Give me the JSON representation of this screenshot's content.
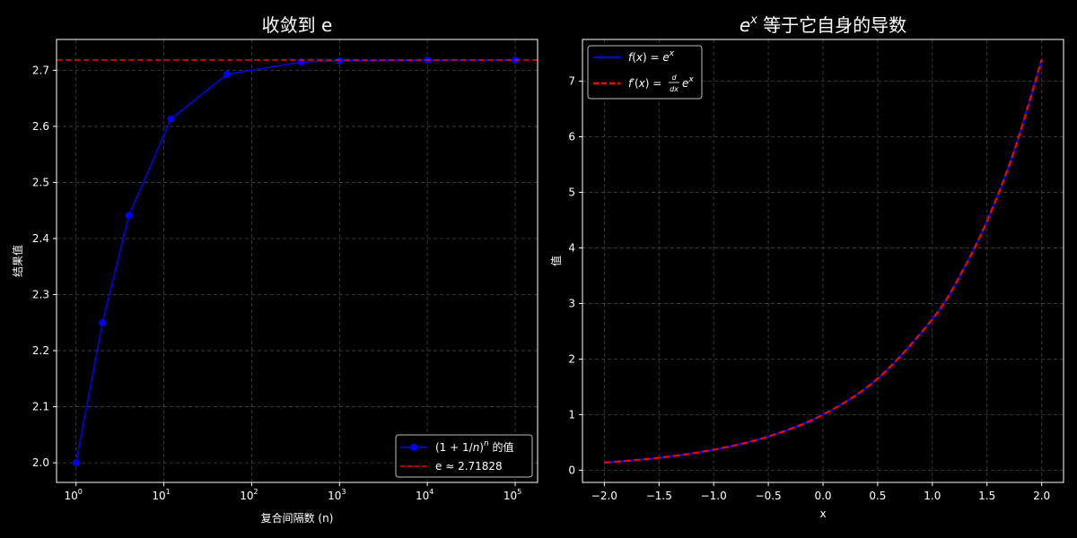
{
  "chart_data": [
    {
      "type": "line",
      "title": "收敛到 e",
      "xlabel": "复合间隔数 (n)",
      "ylabel": "结果值",
      "xscale": "log",
      "xlim": [
        0.6,
        180000
      ],
      "ylim": [
        1.965,
        2.755
      ],
      "grid": true,
      "legend_position": "bottom-right",
      "x_ticks": [
        1,
        10,
        100,
        1000,
        10000,
        100000
      ],
      "x_tick_labels": [
        {
          "base": "10",
          "exp": "0"
        },
        {
          "base": "10",
          "exp": "1"
        },
        {
          "base": "10",
          "exp": "2"
        },
        {
          "base": "10",
          "exp": "3"
        },
        {
          "base": "10",
          "exp": "4"
        },
        {
          "base": "10",
          "exp": "5"
        }
      ],
      "y_ticks": [
        "2.0",
        "2.1",
        "2.2",
        "2.3",
        "2.4",
        "2.5",
        "2.6",
        "2.7"
      ],
      "series": [
        {
          "name": "(1 + 1/n)ⁿ 的值",
          "name_parts": {
            "pre": "(1 + 1/",
            "var": "n",
            "post": ")",
            "sup": "n",
            "tail": " 的值"
          },
          "color": "#0000ff",
          "style": "solid",
          "marker": "circle",
          "x": [
            1,
            2,
            4,
            12,
            52,
            365,
            1000,
            10000,
            100000
          ],
          "y": [
            2.0,
            2.25,
            2.4414,
            2.613,
            2.6926,
            2.7146,
            2.7169,
            2.7181,
            2.7183
          ]
        },
        {
          "name": "e ≈ 2.71828",
          "color": "#ff0000",
          "style": "dashed",
          "hline": 2.71828
        }
      ]
    },
    {
      "type": "line",
      "title_parts": {
        "base": "e",
        "sup": "x",
        "rest": " 等于它自身的导数"
      },
      "xlabel": "x",
      "ylabel": "值",
      "xlim": [
        -2.2,
        2.2
      ],
      "ylim": [
        -0.22,
        7.75
      ],
      "grid": true,
      "legend_position": "top-left",
      "x_ticks": [
        -2.0,
        -1.5,
        -1.0,
        -0.5,
        0.0,
        0.5,
        1.0,
        1.5,
        2.0
      ],
      "x_tick_labels": [
        "−2.0",
        "−1.5",
        "−1.0",
        "−0.5",
        "0.0",
        "0.5",
        "1.0",
        "1.5",
        "2.0"
      ],
      "y_ticks": [
        0,
        1,
        2,
        3,
        4,
        5,
        6,
        7
      ],
      "y_tick_labels": [
        "0",
        "1",
        "2",
        "3",
        "4",
        "5",
        "6",
        "7"
      ],
      "x": [
        -2.0,
        -1.5,
        -1.0,
        -0.5,
        0.0,
        0.5,
        1.0,
        1.25,
        1.5,
        1.75,
        2.0
      ],
      "series": [
        {
          "name_parts": {
            "fn": "f",
            "open": "(",
            "arg": "x",
            "close": ") = ",
            "base": "e",
            "sup": "x"
          },
          "color": "#0000ff",
          "style": "solid",
          "y": [
            0.1353,
            0.2231,
            0.3679,
            0.6065,
            1.0,
            1.6487,
            2.7183,
            3.4903,
            4.4817,
            5.7546,
            7.3891
          ]
        },
        {
          "name_parts": {
            "fn": "f′",
            "open": "(",
            "arg": "x",
            "close": ") = ",
            "num": "d",
            "den": "dx",
            "base": "e",
            "sup": "x"
          },
          "color": "#ff0000",
          "style": "dashed",
          "y": [
            0.1353,
            0.2231,
            0.3679,
            0.6065,
            1.0,
            1.6487,
            2.7183,
            3.4903,
            4.4817,
            5.7546,
            7.3891
          ]
        }
      ]
    }
  ]
}
